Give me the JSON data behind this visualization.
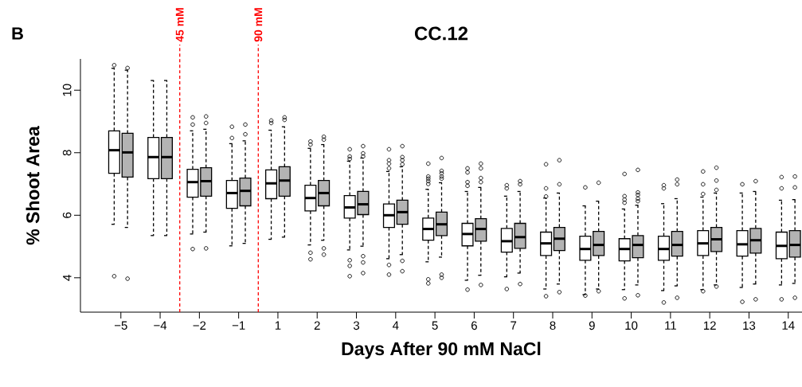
{
  "chart_data": {
    "type": "box",
    "title": "CC.12",
    "xlabel": "Days After 90 mM NaCl",
    "ylabel": "% Shoot Area",
    "annotations": [
      "B",
      "45 mM",
      "90 mM"
    ],
    "categories": [
      "−5",
      "−4",
      "−2",
      "−1",
      "1",
      "2",
      "3",
      "4",
      "5",
      "6",
      "7",
      "8",
      "9",
      "10",
      "11",
      "12",
      "13",
      "14"
    ],
    "ylim": [
      2.9,
      11
    ],
    "yticks": [
      4,
      6,
      8,
      10
    ],
    "series": [
      {
        "color": "#ffffff",
        "boxes": [
          {
            "low": 5.71,
            "q1": 7.34,
            "median": 8.08,
            "q3": 8.7,
            "high": 10.7,
            "outliers": [
              10.8,
              4.05
            ]
          },
          {
            "low": 5.35,
            "q1": 7.17,
            "median": 7.86,
            "q3": 8.49,
            "high": 10.31
          },
          {
            "low": 5.4,
            "q1": 6.58,
            "median": 7.06,
            "q3": 7.47,
            "high": 8.7,
            "outliers": [
              9.13,
              8.9,
              4.92
            ]
          },
          {
            "low": 5.02,
            "q1": 6.22,
            "median": 6.71,
            "q3": 7.11,
            "high": 8.29,
            "outliers": [
              8.83,
              8.47
            ]
          },
          {
            "low": 5.23,
            "q1": 6.53,
            "median": 7.02,
            "q3": 7.45,
            "high": 8.72,
            "outliers": [
              9.03,
              8.95
            ]
          },
          {
            "low": 5.05,
            "q1": 6.14,
            "median": 6.55,
            "q3": 6.96,
            "high": 8.14,
            "outliers": [
              8.36,
              8.26,
              4.8,
              4.59
            ]
          },
          {
            "low": 4.89,
            "q1": 5.91,
            "median": 6.25,
            "q3": 6.63,
            "high": 7.73,
            "outliers": [
              8.11,
              7.88,
              7.8,
              4.56,
              4.38,
              4.05
            ]
          },
          {
            "low": 4.61,
            "q1": 5.61,
            "median": 6.0,
            "q3": 6.36,
            "high": 7.4,
            "outliers": [
              8.11,
              7.76,
              7.65,
              7.5,
              4.41,
              4.1
            ]
          },
          {
            "low": 4.51,
            "q1": 5.2,
            "median": 5.56,
            "q3": 5.91,
            "high": 6.83,
            "outliers": [
              7.65,
              7.24,
              7.17,
              7.09,
              7.0,
              3.95,
              3.82
            ]
          },
          {
            "low": 3.92,
            "q1": 5.02,
            "median": 5.4,
            "q3": 5.74,
            "high": 6.76,
            "outliers": [
              7.5,
              7.37,
              7.06,
              6.94,
              3.62
            ]
          },
          {
            "low": 4.03,
            "q1": 4.82,
            "median": 5.17,
            "q3": 5.58,
            "high": 6.61,
            "outliers": [
              6.96,
              6.86,
              3.64
            ]
          },
          {
            "low": 3.64,
            "q1": 4.71,
            "median": 5.1,
            "q3": 5.46,
            "high": 6.55,
            "outliers": [
              7.63,
              6.86,
              6.6,
              3.41
            ]
          },
          {
            "low": 3.46,
            "q1": 4.56,
            "median": 4.92,
            "q3": 5.33,
            "high": 6.3,
            "outliers": [
              6.89,
              3.43
            ]
          },
          {
            "low": 3.62,
            "q1": 4.54,
            "median": 4.92,
            "q3": 5.25,
            "high": 6.2,
            "outliers": [
              7.32,
              6.61,
              6.5,
              6.4,
              3.34
            ]
          },
          {
            "low": 3.59,
            "q1": 4.56,
            "median": 4.92,
            "q3": 5.33,
            "high": 6.37,
            "outliers": [
              6.96,
              6.86,
              3.21
            ]
          },
          {
            "low": 3.62,
            "q1": 4.71,
            "median": 5.1,
            "q3": 5.51,
            "high": 6.58,
            "outliers": [
              7.4,
              6.99,
              6.68,
              3.57
            ]
          },
          {
            "low": 3.69,
            "q1": 4.69,
            "median": 5.07,
            "q3": 5.51,
            "high": 6.71,
            "outliers": [
              6.99,
              3.23
            ]
          },
          {
            "low": 3.77,
            "q1": 4.61,
            "median": 5.02,
            "q3": 5.46,
            "high": 6.48,
            "outliers": [
              7.22,
              6.86,
              3.31
            ]
          }
        ]
      },
      {
        "color": "#b3b3b3",
        "boxes": [
          {
            "low": 5.61,
            "q1": 7.22,
            "median": 8.01,
            "q3": 8.62,
            "high": 10.64,
            "outliers": [
              10.71,
              3.97
            ]
          },
          {
            "low": 5.35,
            "q1": 7.17,
            "median": 7.86,
            "q3": 8.49,
            "high": 10.31
          },
          {
            "low": 5.46,
            "q1": 6.61,
            "median": 7.09,
            "q3": 7.52,
            "high": 8.75,
            "outliers": [
              9.16,
              8.95,
              4.94
            ]
          },
          {
            "low": 5.1,
            "q1": 6.3,
            "median": 6.78,
            "q3": 7.19,
            "high": 8.38,
            "outliers": [
              8.9,
              8.59
            ]
          },
          {
            "low": 5.3,
            "q1": 6.61,
            "median": 7.11,
            "q3": 7.55,
            "high": 8.83,
            "outliers": [
              9.13,
              9.05
            ]
          },
          {
            "low": 5.2,
            "q1": 6.3,
            "median": 6.71,
            "q3": 7.11,
            "high": 8.26,
            "outliers": [
              8.51,
              8.42,
              4.94,
              4.74
            ]
          },
          {
            "low": 5.01,
            "q1": 6.02,
            "median": 6.35,
            "q3": 6.76,
            "high": 7.83,
            "outliers": [
              8.21,
              7.98,
              7.88,
              4.69,
              4.49,
              4.15
            ]
          },
          {
            "low": 4.74,
            "q1": 5.71,
            "median": 6.1,
            "q3": 6.48,
            "high": 7.55,
            "outliers": [
              8.21,
              7.86,
              7.76,
              7.63,
              4.54,
              4.21
            ]
          },
          {
            "low": 4.66,
            "q1": 5.35,
            "median": 5.71,
            "q3": 6.1,
            "high": 7.04,
            "outliers": [
              7.83,
              7.42,
              7.34,
              7.24,
              7.17,
              4.1,
              4.0
            ]
          },
          {
            "low": 4.08,
            "q1": 5.17,
            "median": 5.56,
            "q3": 5.89,
            "high": 6.89,
            "outliers": [
              7.65,
              7.5,
              7.19,
              7.06,
              3.77
            ]
          },
          {
            "low": 4.15,
            "q1": 4.94,
            "median": 5.3,
            "q3": 5.74,
            "high": 6.76,
            "outliers": [
              7.09,
              6.99,
              3.8
            ]
          },
          {
            "low": 3.8,
            "q1": 4.87,
            "median": 5.25,
            "q3": 5.61,
            "high": 6.71,
            "outliers": [
              7.76,
              6.99,
              3.54
            ]
          },
          {
            "low": 3.64,
            "q1": 4.71,
            "median": 5.05,
            "q3": 5.48,
            "high": 6.45,
            "outliers": [
              7.04,
              3.57
            ]
          },
          {
            "low": 3.77,
            "q1": 4.64,
            "median": 5.05,
            "q3": 5.35,
            "high": 6.32,
            "outliers": [
              7.45,
              6.73,
              6.65,
              6.53,
              6.45,
              3.44
            ]
          },
          {
            "low": 3.74,
            "q1": 4.69,
            "median": 5.05,
            "q3": 5.48,
            "high": 6.53,
            "outliers": [
              7.14,
              6.99,
              3.36
            ]
          },
          {
            "low": 3.77,
            "q1": 4.84,
            "median": 5.23,
            "q3": 5.61,
            "high": 6.71,
            "outliers": [
              7.52,
              7.11,
              6.81,
              3.72
            ]
          },
          {
            "low": 3.8,
            "q1": 4.79,
            "median": 5.2,
            "q3": 5.58,
            "high": 6.76,
            "outliers": [
              7.09,
              3.31
            ]
          },
          {
            "low": 3.82,
            "q1": 4.66,
            "median": 5.05,
            "q3": 5.51,
            "high": 6.5,
            "outliers": [
              7.24,
              6.89,
              3.36
            ]
          }
        ]
      }
    ]
  }
}
